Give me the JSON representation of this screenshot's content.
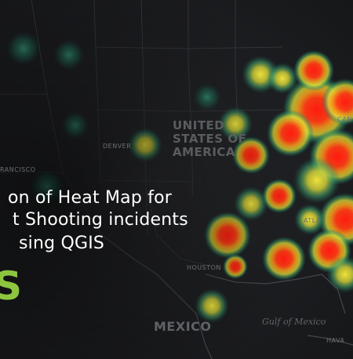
{
  "title": {
    "line1": "on of Heat Map for",
    "line2": "t Shooting incidents",
    "line3": "sing QGIS",
    "brand": "S"
  },
  "map_labels": {
    "country": "UNITED\nSTATES OF\nAMERICA",
    "denver": "DENVER",
    "francisco": "RANCISCO",
    "houston": "HOUSTON",
    "atlanta": "ATLA",
    "mexico": "MEXICO",
    "gulf": "Gulf of Mexico",
    "havana": "HAVA",
    "canada_fragment": "CAN"
  },
  "colors": {
    "background": "#1c1d20",
    "heat_low": "#1f8a6b",
    "heat_mid": "#e8e23a",
    "heat_high": "#ff2a1a",
    "brand_green": "#8cc63f"
  }
}
